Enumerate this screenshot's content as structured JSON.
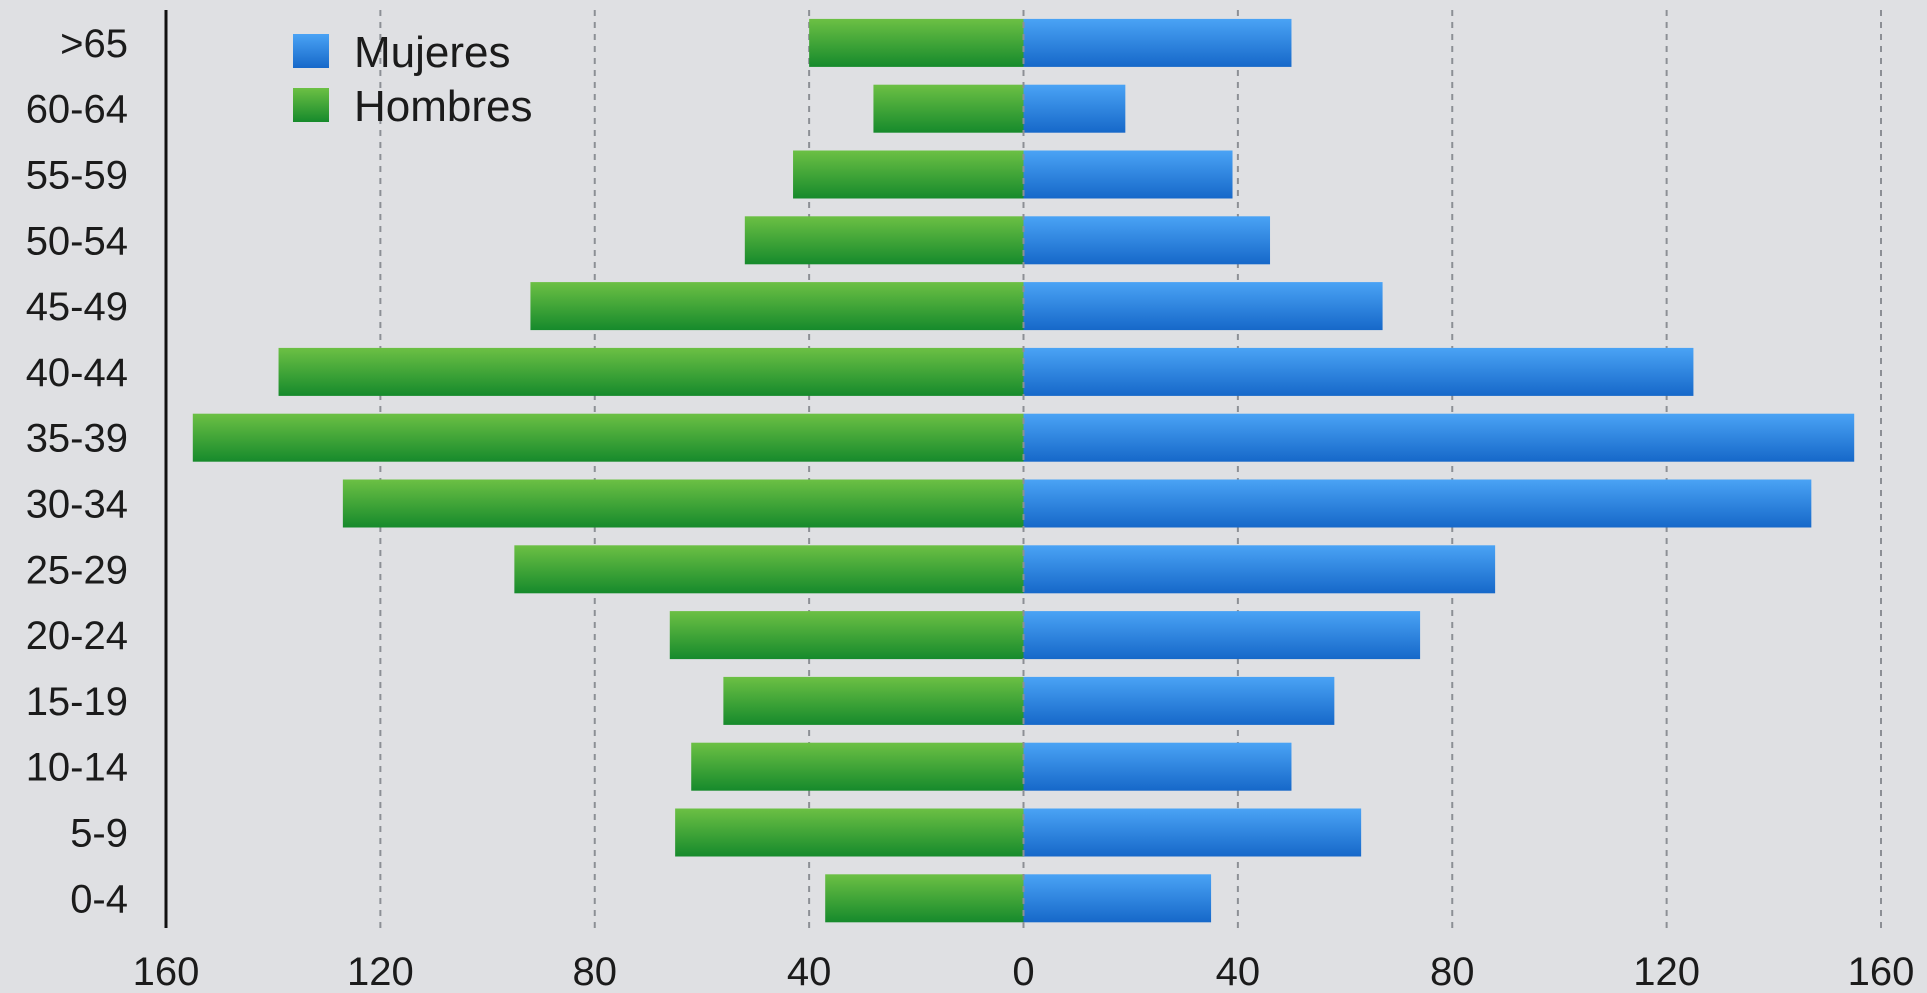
{
  "chart_data": {
    "type": "bar",
    "orientation": "horizontal",
    "categories": [
      ">65",
      "60-64",
      "55-59",
      "50-54",
      "45-49",
      "40-44",
      "35-39",
      "30-34",
      "25-29",
      "20-24",
      "15-19",
      "10-14",
      "5-9",
      "0-4"
    ],
    "series": [
      {
        "name": "Mujeres",
        "side": "right",
        "color": "#2f86e6",
        "values": [
          50,
          19,
          39,
          46,
          67,
          125,
          155,
          147,
          88,
          74,
          58,
          50,
          63,
          35
        ]
      },
      {
        "name": "Hombres",
        "side": "left",
        "color": "#43a834",
        "values": [
          40,
          28,
          43,
          52,
          92,
          139,
          155,
          127,
          95,
          66,
          56,
          62,
          65,
          37
        ]
      }
    ],
    "xticks": [
      "160",
      "120",
      "80",
      "40",
      "0",
      "40",
      "80",
      "120",
      "160"
    ],
    "xlim": [
      -160,
      160
    ],
    "grid": true,
    "legend": "top-left"
  }
}
